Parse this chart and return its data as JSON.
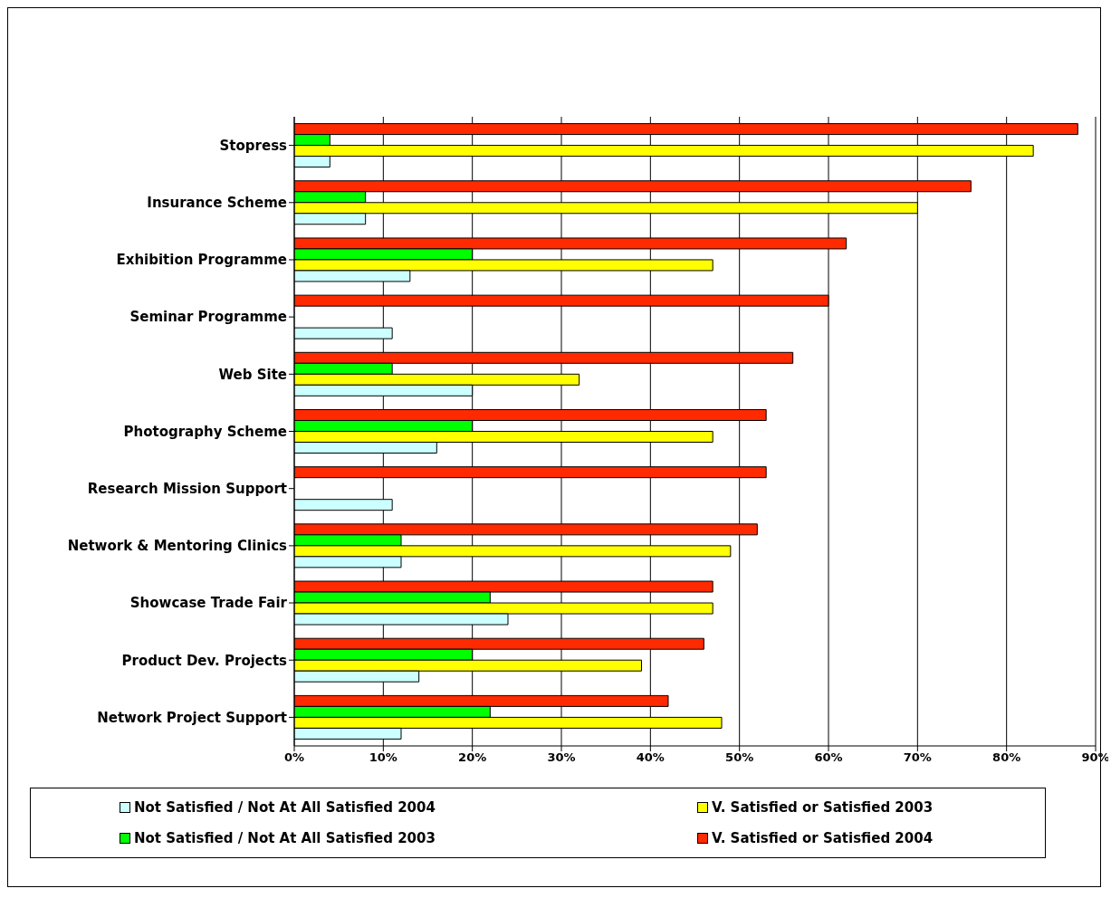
{
  "chart_data": {
    "type": "bar",
    "orientation": "horizontal",
    "categories": [
      "Stopress",
      "Insurance Scheme",
      "Exhibition Programme",
      "Seminar Programme",
      "Web Site",
      "Photography Scheme",
      "Research Mission Support",
      "Network & Mentoring Clinics",
      "Showcase Trade Fair",
      "Product Dev. Projects",
      "Network Project Support"
    ],
    "series": [
      {
        "name": "V. Satisfied or Satisfied 2004",
        "color": "#ff2a00",
        "values": [
          88,
          76,
          62,
          60,
          56,
          53,
          53,
          52,
          47,
          46,
          42
        ]
      },
      {
        "name": "Not Satisfied / Not At All Satisfied 2003",
        "color": "#00ff00",
        "values": [
          4,
          8,
          20,
          null,
          11,
          20,
          null,
          12,
          22,
          20,
          22
        ]
      },
      {
        "name": "V. Satisfied or Satisfied 2003",
        "color": "#ffff00",
        "values": [
          83,
          70,
          47,
          null,
          32,
          47,
          null,
          49,
          47,
          39,
          48
        ]
      },
      {
        "name": "Not Satisfied / Not At All Satisfied 2004",
        "color": "#ccffff",
        "values": [
          4,
          8,
          13,
          11,
          20,
          16,
          11,
          12,
          24,
          14,
          12
        ]
      }
    ],
    "xlim": [
      0,
      90
    ],
    "xticks": [
      {
        "value": 0,
        "label": "0%"
      },
      {
        "value": 10,
        "label": "10%"
      },
      {
        "value": 20,
        "label": "20%"
      },
      {
        "value": 30,
        "label": "30%"
      },
      {
        "value": 40,
        "label": "40%"
      },
      {
        "value": 50,
        "label": "50%"
      },
      {
        "value": 60,
        "label": "60%"
      },
      {
        "value": 70,
        "label": "70%"
      },
      {
        "value": 80,
        "label": "80%"
      },
      {
        "value": 90,
        "label": "90%"
      }
    ],
    "grid": "x",
    "legend": "bottom"
  }
}
